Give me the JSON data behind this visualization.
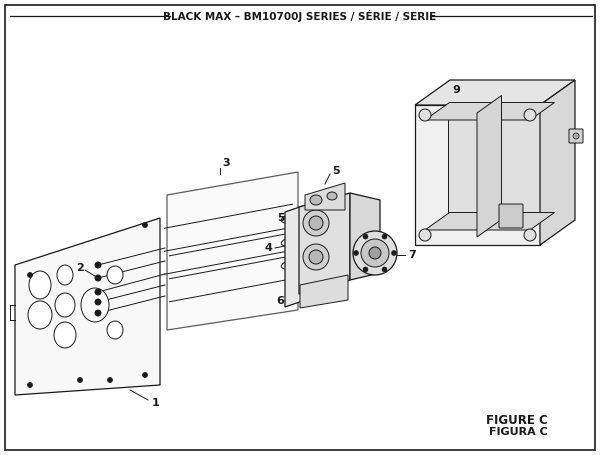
{
  "title": "BLACK MAX – BM10700J SERIES / SÉRIE / SERIE",
  "figure_label_1": "FIGURE C",
  "figure_label_2": "FIGURA C",
  "bg_color": "#ffffff",
  "line_color": "#1a1a1a",
  "figsize": [
    6.0,
    4.55
  ],
  "dpi": 100
}
